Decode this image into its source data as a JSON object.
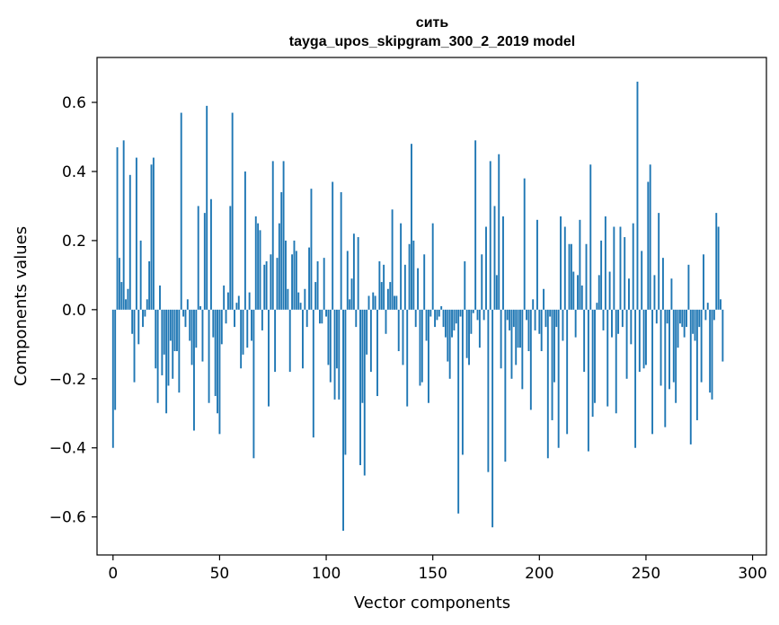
{
  "chart_data": {
    "type": "bar",
    "title": "сить",
    "subtitle": "tayga_upos_skipgram_300_2_2019 model",
    "xlabel": "Vector components",
    "ylabel": "Components values",
    "xlim": [
      -7.5,
      306.5
    ],
    "ylim": [
      -0.71,
      0.73
    ],
    "xticks": [
      0,
      50,
      100,
      150,
      200,
      250,
      300
    ],
    "yticks": [
      -0.6,
      -0.4,
      -0.2,
      0.0,
      0.2,
      0.4,
      0.6
    ],
    "ytick_labels": [
      "−0.6",
      "−0.4",
      "−0.2",
      "0.0",
      "0.2",
      "0.4",
      "0.6"
    ],
    "grid": false,
    "color": "#1f77b4",
    "x_start": 0,
    "values": [
      -0.4,
      -0.29,
      0.47,
      0.15,
      0.08,
      0.49,
      0.03,
      0.06,
      0.39,
      -0.07,
      -0.21,
      0.44,
      -0.1,
      0.2,
      -0.05,
      -0.02,
      0.03,
      0.14,
      0.42,
      0.44,
      -0.17,
      -0.27,
      0.07,
      -0.19,
      -0.13,
      -0.3,
      -0.22,
      -0.09,
      -0.2,
      -0.12,
      -0.12,
      -0.24,
      0.57,
      -0.02,
      -0.05,
      0.03,
      -0.09,
      -0.16,
      -0.35,
      -0.11,
      0.3,
      0.01,
      -0.15,
      0.28,
      0.59,
      -0.27,
      0.32,
      -0.08,
      -0.25,
      -0.3,
      -0.36,
      -0.1,
      0.07,
      -0.04,
      0.05,
      0.3,
      0.57,
      -0.05,
      0.02,
      0.04,
      -0.17,
      -0.13,
      0.4,
      -0.11,
      0.05,
      -0.09,
      -0.43,
      0.27,
      0.25,
      0.23,
      -0.06,
      0.13,
      0.14,
      -0.28,
      0.16,
      0.43,
      -0.18,
      0.15,
      0.25,
      0.34,
      0.43,
      0.2,
      0.06,
      -0.18,
      0.16,
      0.2,
      0.17,
      0.05,
      0.02,
      -0.17,
      0.06,
      -0.05,
      0.18,
      0.35,
      -0.37,
      0.08,
      0.14,
      -0.04,
      -0.04,
      0.15,
      -0.02,
      -0.16,
      -0.21,
      0.37,
      -0.26,
      -0.17,
      -0.26,
      0.34,
      -0.64,
      -0.42,
      0.17,
      0.03,
      0.09,
      0.22,
      -0.05,
      0.21,
      -0.45,
      -0.27,
      -0.48,
      -0.13,
      0.04,
      -0.18,
      0.05,
      0.04,
      -0.25,
      0.14,
      0.08,
      0.13,
      -0.07,
      0.06,
      0.08,
      0.29,
      0.04,
      0.04,
      -0.12,
      0.25,
      -0.16,
      0.13,
      -0.28,
      0.19,
      0.48,
      0.2,
      -0.05,
      0.12,
      -0.22,
      -0.21,
      0.16,
      -0.09,
      -0.27,
      -0.02,
      0.25,
      -0.05,
      -0.03,
      -0.02,
      0.01,
      -0.05,
      -0.08,
      -0.15,
      -0.2,
      -0.08,
      -0.06,
      -0.04,
      -0.59,
      -0.02,
      -0.42,
      0.14,
      -0.14,
      -0.16,
      -0.07,
      -0.01,
      0.49,
      -0.03,
      -0.11,
      0.16,
      -0.03,
      0.24,
      -0.47,
      0.43,
      -0.63,
      0.3,
      0.1,
      0.45,
      -0.17,
      0.27,
      -0.44,
      -0.03,
      -0.06,
      -0.2,
      -0.05,
      -0.16,
      -0.11,
      -0.11,
      -0.23,
      0.38,
      -0.03,
      -0.12,
      -0.29,
      0.03,
      -0.06,
      0.26,
      -0.07,
      -0.12,
      0.06,
      -0.05,
      -0.43,
      -0.02,
      -0.32,
      -0.21,
      -0.05,
      -0.4,
      0.27,
      -0.09,
      0.24,
      -0.36,
      0.19,
      0.19,
      0.11,
      -0.08,
      0.1,
      0.26,
      0.07,
      -0.18,
      0.19,
      -0.41,
      0.42,
      -0.31,
      -0.27,
      0.02,
      0.1,
      0.2,
      -0.06,
      0.27,
      -0.28,
      0.11,
      -0.08,
      0.24,
      -0.3,
      -0.07,
      0.24,
      -0.05,
      0.21,
      -0.2,
      0.09,
      -0.1,
      0.25,
      -0.4,
      0.66,
      -0.18,
      0.17,
      -0.17,
      -0.16,
      0.37,
      0.42,
      -0.36,
      0.1,
      -0.04,
      0.28,
      -0.22,
      0.15,
      -0.34,
      -0.04,
      -0.23,
      0.09,
      -0.21,
      -0.27,
      -0.11,
      -0.04,
      -0.05,
      -0.08,
      -0.05,
      0.13,
      -0.39,
      -0.07,
      -0.09,
      -0.32,
      -0.05,
      -0.21,
      0.16,
      -0.03,
      0.02,
      -0.24,
      -0.26,
      -0.03,
      0.28,
      0.24,
      0.03,
      -0.15
    ]
  }
}
